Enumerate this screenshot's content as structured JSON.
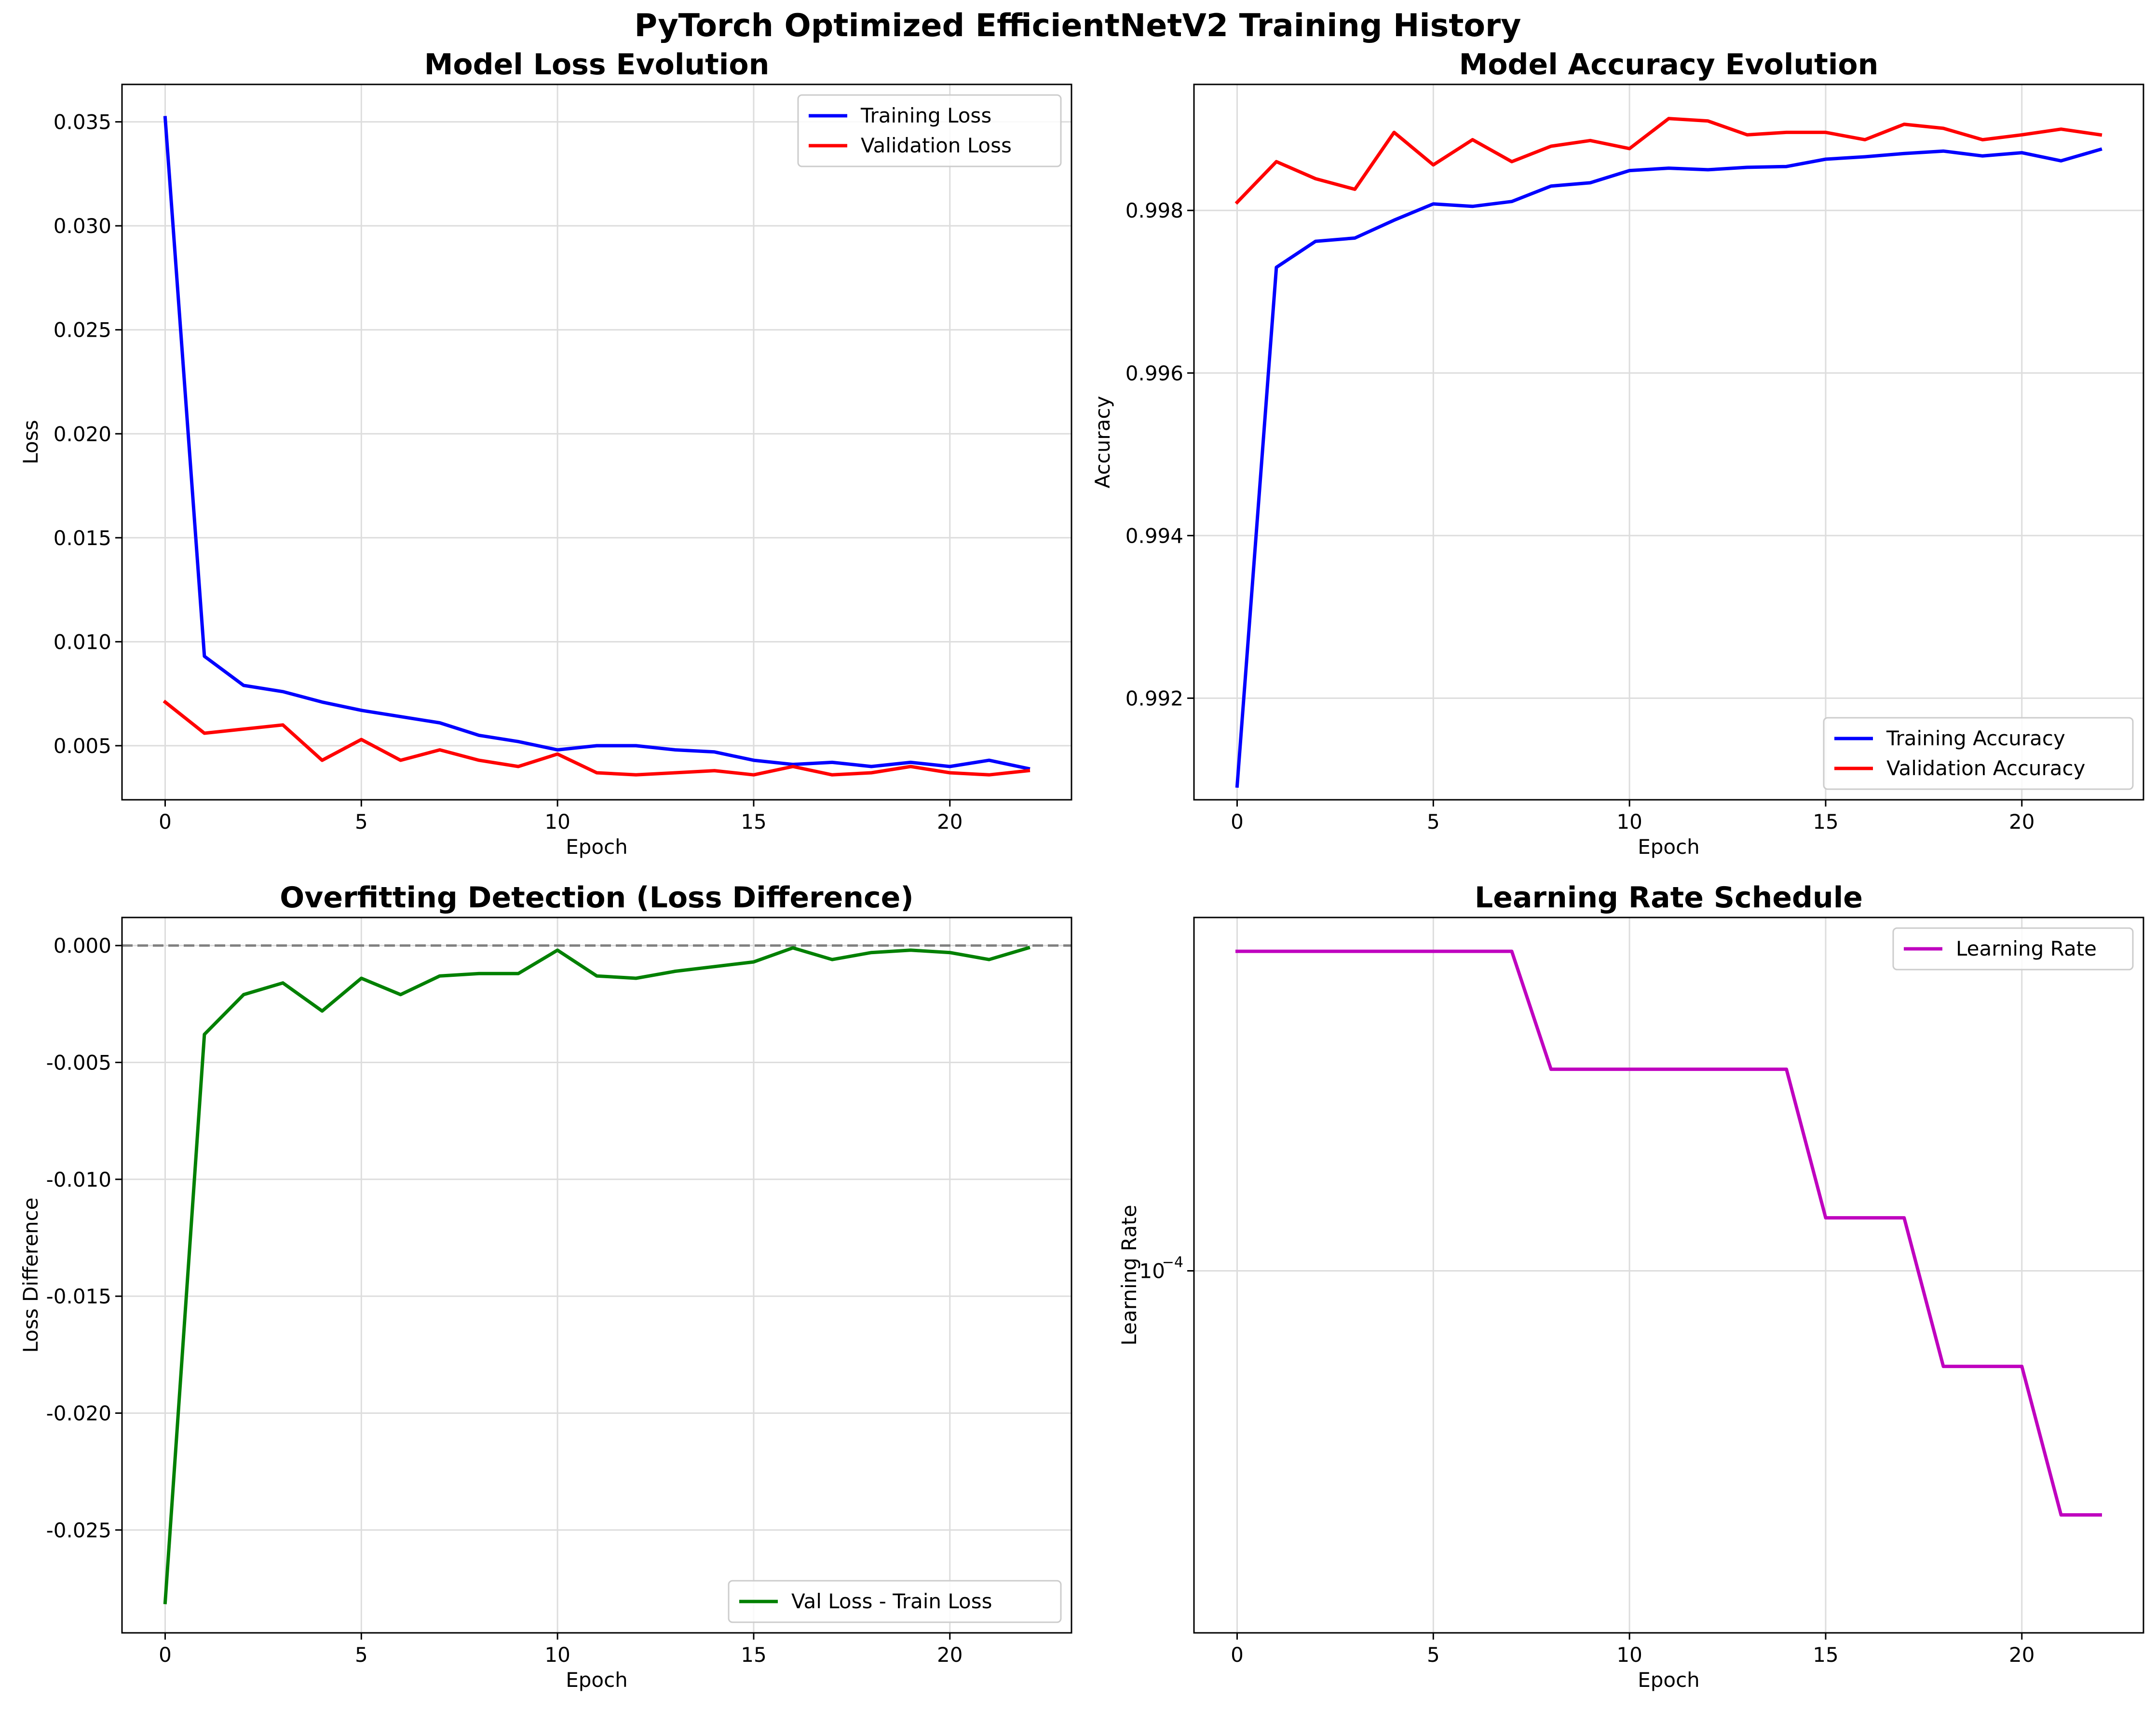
{
  "figure": {
    "title": "PyTorch Optimized EfficientNetV2 Training History"
  },
  "chart_data": [
    {
      "id": "loss",
      "type": "line",
      "title": "Model Loss Evolution",
      "xlabel": "Epoch",
      "ylabel": "Loss",
      "xlim": [
        -1.1,
        23.1
      ],
      "ylim": [
        0.0024,
        0.0368
      ],
      "xticks": [
        0,
        5,
        10,
        15,
        20
      ],
      "yticks": [
        0.005,
        0.01,
        0.015,
        0.02,
        0.025,
        0.03,
        0.035
      ],
      "ytick_labels": [
        "0.005",
        "0.010",
        "0.015",
        "0.020",
        "0.025",
        "0.030",
        "0.035"
      ],
      "grid": true,
      "legend": "upper right",
      "x": [
        0,
        1,
        2,
        3,
        4,
        5,
        6,
        7,
        8,
        9,
        10,
        11,
        12,
        13,
        14,
        15,
        16,
        17,
        18,
        19,
        20,
        21,
        22
      ],
      "series": [
        {
          "name": "Training Loss",
          "color": "#0000ff",
          "values": [
            0.0352,
            0.0093,
            0.0079,
            0.0076,
            0.0071,
            0.0067,
            0.0064,
            0.0061,
            0.0055,
            0.0052,
            0.0048,
            0.005,
            0.005,
            0.0048,
            0.0047,
            0.0043,
            0.0041,
            0.0042,
            0.004,
            0.0042,
            0.004,
            0.0043,
            0.0039
          ]
        },
        {
          "name": "Validation Loss",
          "color": "#ff0000",
          "values": [
            0.0071,
            0.0056,
            0.0058,
            0.006,
            0.0043,
            0.0053,
            0.0043,
            0.0048,
            0.0043,
            0.004,
            0.0046,
            0.0037,
            0.0036,
            0.0037,
            0.0038,
            0.0036,
            0.004,
            0.0036,
            0.0037,
            0.004,
            0.0037,
            0.0036,
            0.0038
          ]
        }
      ]
    },
    {
      "id": "accuracy",
      "type": "line",
      "title": "Model Accuracy Evolution",
      "xlabel": "Epoch",
      "ylabel": "Accuracy",
      "xlim": [
        -1.1,
        23.1
      ],
      "ylim": [
        0.99075,
        0.99955
      ],
      "xticks": [
        0,
        5,
        10,
        15,
        20
      ],
      "yticks": [
        0.992,
        0.994,
        0.996,
        0.998
      ],
      "ytick_labels": [
        "0.992",
        "0.994",
        "0.996",
        "0.998"
      ],
      "grid": true,
      "legend": "lower right",
      "x": [
        0,
        1,
        2,
        3,
        4,
        5,
        6,
        7,
        8,
        9,
        10,
        11,
        12,
        13,
        14,
        15,
        16,
        17,
        18,
        19,
        20,
        21,
        22
      ],
      "series": [
        {
          "name": "Training Accuracy",
          "color": "#0000ff",
          "values": [
            0.99092,
            0.9973,
            0.99762,
            0.99766,
            0.99788,
            0.99808,
            0.99805,
            0.99811,
            0.9983,
            0.99834,
            0.99849,
            0.99852,
            0.9985,
            0.99853,
            0.99854,
            0.99863,
            0.99866,
            0.9987,
            0.99873,
            0.99867,
            0.99871,
            0.99861,
            0.99875
          ]
        },
        {
          "name": "Validation Accuracy",
          "color": "#ff0000",
          "values": [
            0.9981,
            0.9986,
            0.99839,
            0.99826,
            0.99896,
            0.99856,
            0.99887,
            0.9986,
            0.99879,
            0.99886,
            0.99876,
            0.99913,
            0.9991,
            0.99893,
            0.99896,
            0.99896,
            0.99887,
            0.99906,
            0.99901,
            0.99887,
            0.99893,
            0.999,
            0.99893
          ]
        }
      ]
    },
    {
      "id": "overfit",
      "type": "line",
      "title": "Overfitting Detection (Loss Difference)",
      "xlabel": "Epoch",
      "ylabel": "Loss Difference",
      "xlim": [
        -1.1,
        23.1
      ],
      "ylim": [
        -0.0294,
        0.0012
      ],
      "xticks": [
        0,
        5,
        10,
        15,
        20
      ],
      "yticks": [
        -0.025,
        -0.02,
        -0.015,
        -0.01,
        -0.005,
        0.0
      ],
      "ytick_labels": [
        "-0.025",
        "-0.020",
        "-0.015",
        "-0.010",
        "-0.005",
        "0.000"
      ],
      "grid": true,
      "legend": "lower right",
      "reference_line": {
        "y": 0,
        "color": "#808080",
        "style": "dashed"
      },
      "x": [
        0,
        1,
        2,
        3,
        4,
        5,
        6,
        7,
        8,
        9,
        10,
        11,
        12,
        13,
        14,
        15,
        16,
        17,
        18,
        19,
        20,
        21,
        22
      ],
      "series": [
        {
          "name": "Val Loss - Train Loss",
          "color": "#008000",
          "values": [
            -0.0281,
            -0.0038,
            -0.0021,
            -0.0016,
            -0.0028,
            -0.0014,
            -0.0021,
            -0.0013,
            -0.0012,
            -0.0012,
            -0.0002,
            -0.0013,
            -0.0014,
            -0.0011,
            -0.0009,
            -0.0007,
            -0.0001,
            -0.0006,
            -0.0003,
            -0.0002,
            -0.0003,
            -0.0006,
            -0.0001
          ]
        }
      ]
    },
    {
      "id": "lr",
      "type": "line",
      "title": "Learning Rate Schedule",
      "xlabel": "Epoch",
      "ylabel": "Learning Rate",
      "yscale": "log",
      "xlim": [
        -1.1,
        23.1
      ],
      "ylim": [
        2.88e-05,
        0.000337
      ],
      "xticks": [
        0,
        5,
        10,
        15,
        20
      ],
      "yticks": [
        0.0001
      ],
      "ytick_labels": [
        "10",
        "−4"
      ],
      "grid": true,
      "legend": "upper right",
      "x": [
        0,
        1,
        2,
        3,
        4,
        5,
        6,
        7,
        8,
        9,
        10,
        11,
        12,
        13,
        14,
        15,
        16,
        17,
        18,
        19,
        20,
        21,
        22
      ],
      "series": [
        {
          "name": "Learning Rate",
          "color": "#bf00bf",
          "values": [
            0.0003,
            0.0003,
            0.0003,
            0.0003,
            0.0003,
            0.0003,
            0.0003,
            0.0003,
            0.0002,
            0.0002,
            0.0002,
            0.0002,
            0.0002,
            0.0002,
            0.0002,
            0.00012,
            0.00012,
            0.00012,
            7.2e-05,
            7.2e-05,
            7.2e-05,
            4.32e-05,
            4.32e-05
          ]
        }
      ]
    }
  ]
}
